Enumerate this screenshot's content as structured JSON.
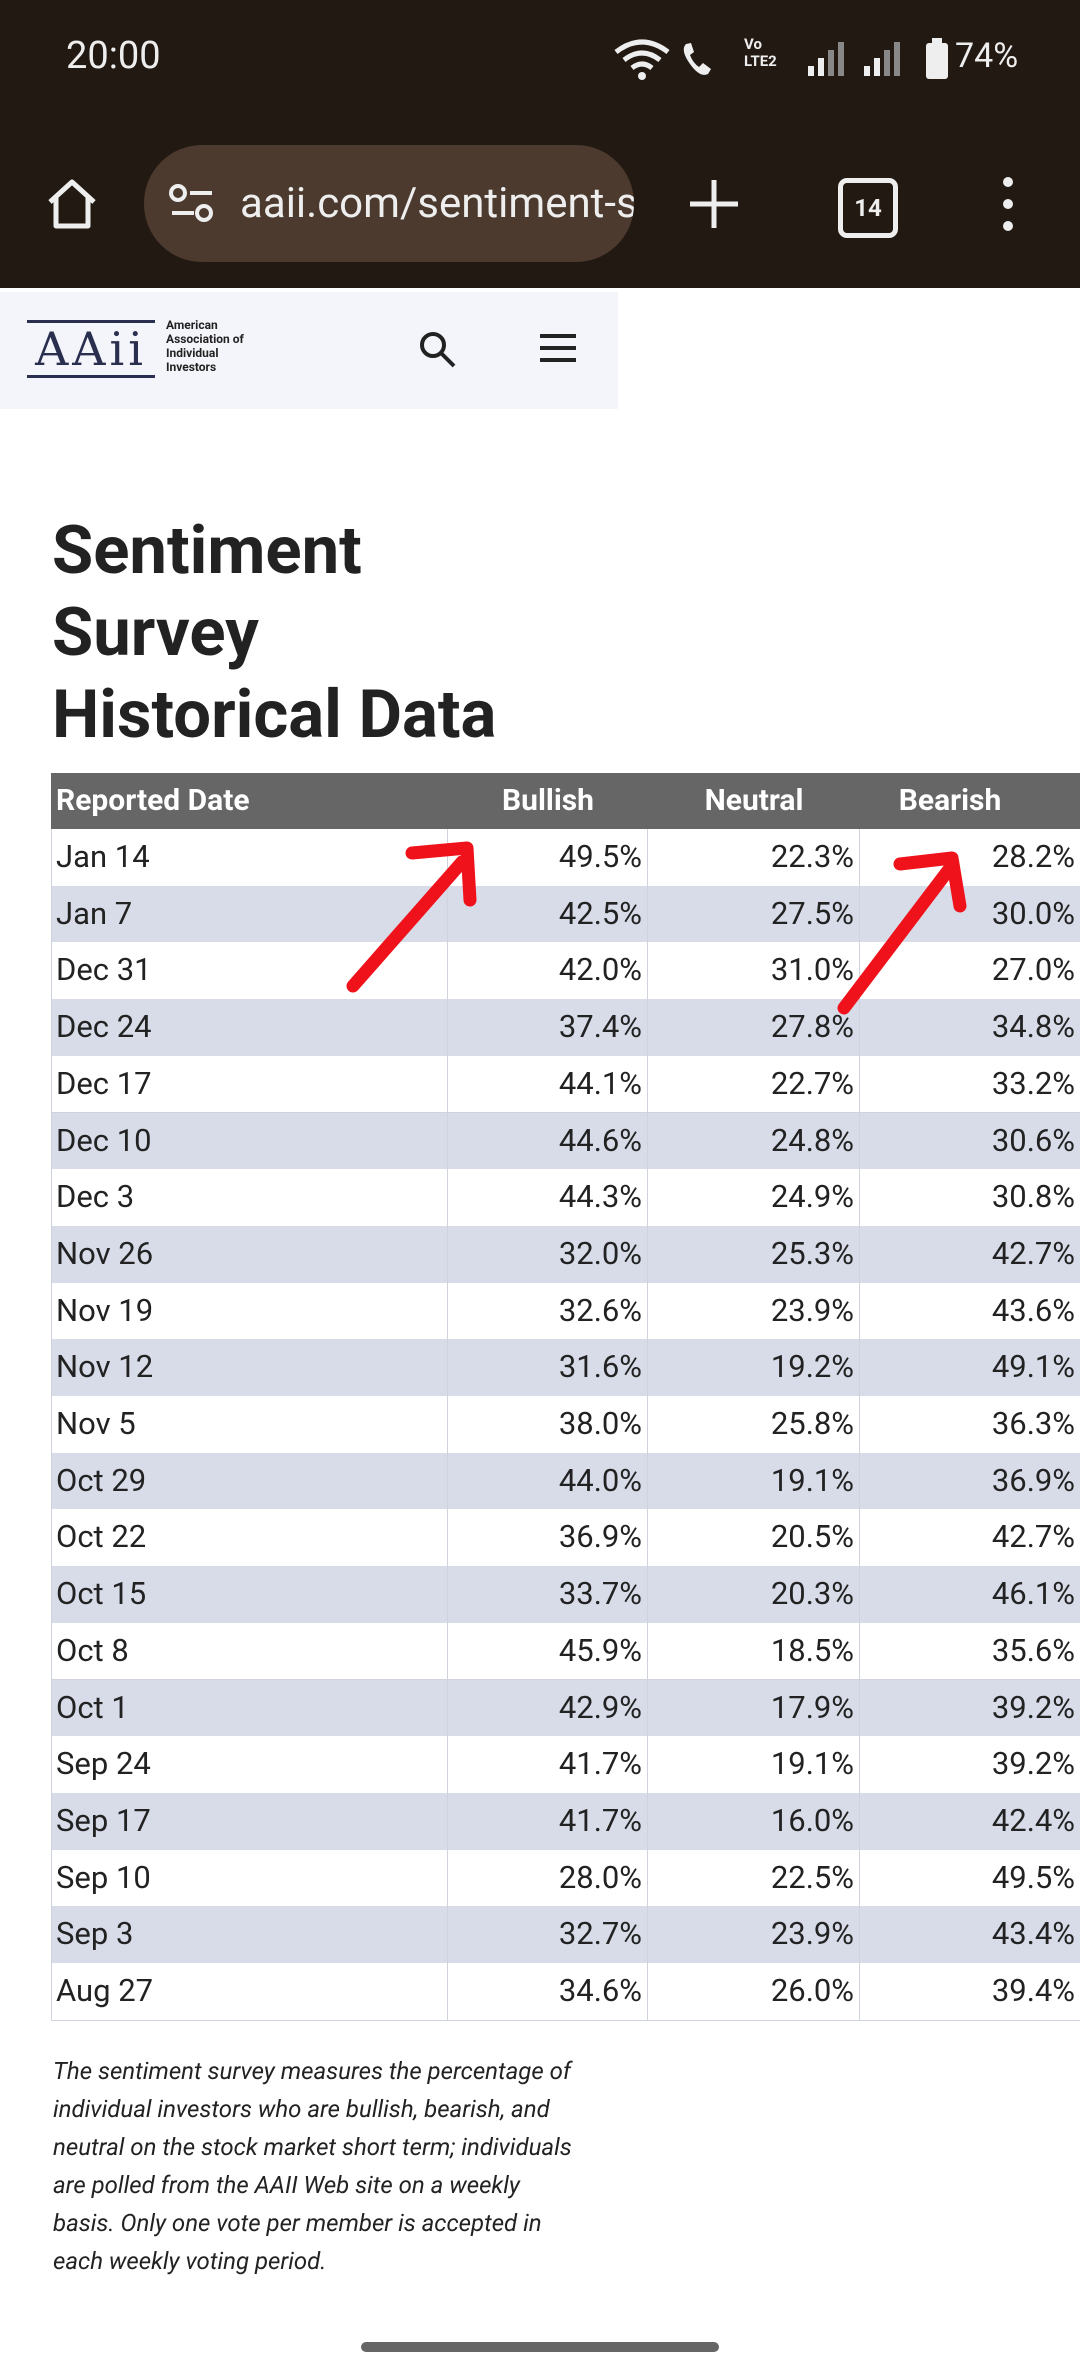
{
  "status_bar": {
    "time": "20:00",
    "volte_top": "Vo",
    "volte_bottom": "LTE2",
    "battery": "74%"
  },
  "browser": {
    "url": "aaii.com/sentiment-survey/sent_results",
    "tab_count": "14"
  },
  "header": {
    "logo": "AAii",
    "org_name": [
      "American",
      "Association of",
      "Individual",
      "Investors"
    ]
  },
  "page": {
    "title": [
      "Sentiment",
      "Survey",
      "Historical Data"
    ],
    "footnote": "The sentiment survey measures the percentage of individual investors who are bullish, bearish, and neutral on the stock market short term; individuals are polled from the AAII Web site on a weekly basis. Only one vote per member is accepted in each weekly voting period."
  },
  "table": {
    "header": [
      "Reported Date",
      "Bullish",
      "Neutral",
      "Bearish"
    ],
    "rows": [
      [
        "Jan 14",
        "49.5%",
        "22.3%",
        "28.2%"
      ],
      [
        "Jan 7",
        "42.5%",
        "27.5%",
        "30.0%"
      ],
      [
        "Dec 31",
        "42.0%",
        "31.0%",
        "27.0%"
      ],
      [
        "Dec 24",
        "37.4%",
        "27.8%",
        "34.8%"
      ],
      [
        "Dec 17",
        "44.1%",
        "22.7%",
        "33.2%"
      ],
      [
        "Dec 10",
        "44.6%",
        "24.8%",
        "30.6%"
      ],
      [
        "Dec 3",
        "44.3%",
        "24.9%",
        "30.8%"
      ],
      [
        "Nov 26",
        "32.0%",
        "25.3%",
        "42.7%"
      ],
      [
        "Nov 19",
        "32.6%",
        "23.9%",
        "43.6%"
      ],
      [
        "Nov 12",
        "31.6%",
        "19.2%",
        "49.1%"
      ],
      [
        "Nov 5",
        "38.0%",
        "25.8%",
        "36.3%"
      ],
      [
        "Oct 29",
        "44.0%",
        "19.1%",
        "36.9%"
      ],
      [
        "Oct 22",
        "36.9%",
        "20.5%",
        "42.7%"
      ],
      [
        "Oct 15",
        "33.7%",
        "20.3%",
        "46.1%"
      ],
      [
        "Oct 8",
        "45.9%",
        "18.5%",
        "35.6%"
      ],
      [
        "Oct 1",
        "42.9%",
        "17.9%",
        "39.2%"
      ],
      [
        "Sep 24",
        "41.7%",
        "19.1%",
        "39.2%"
      ],
      [
        "Sep 17",
        "41.7%",
        "16.0%",
        "42.4%"
      ],
      [
        "Sep 10",
        "28.0%",
        "22.5%",
        "49.5%"
      ],
      [
        "Sep 3",
        "32.7%",
        "23.9%",
        "43.4%"
      ],
      [
        "Aug 27",
        "34.6%",
        "26.0%",
        "39.4%"
      ]
    ]
  }
}
